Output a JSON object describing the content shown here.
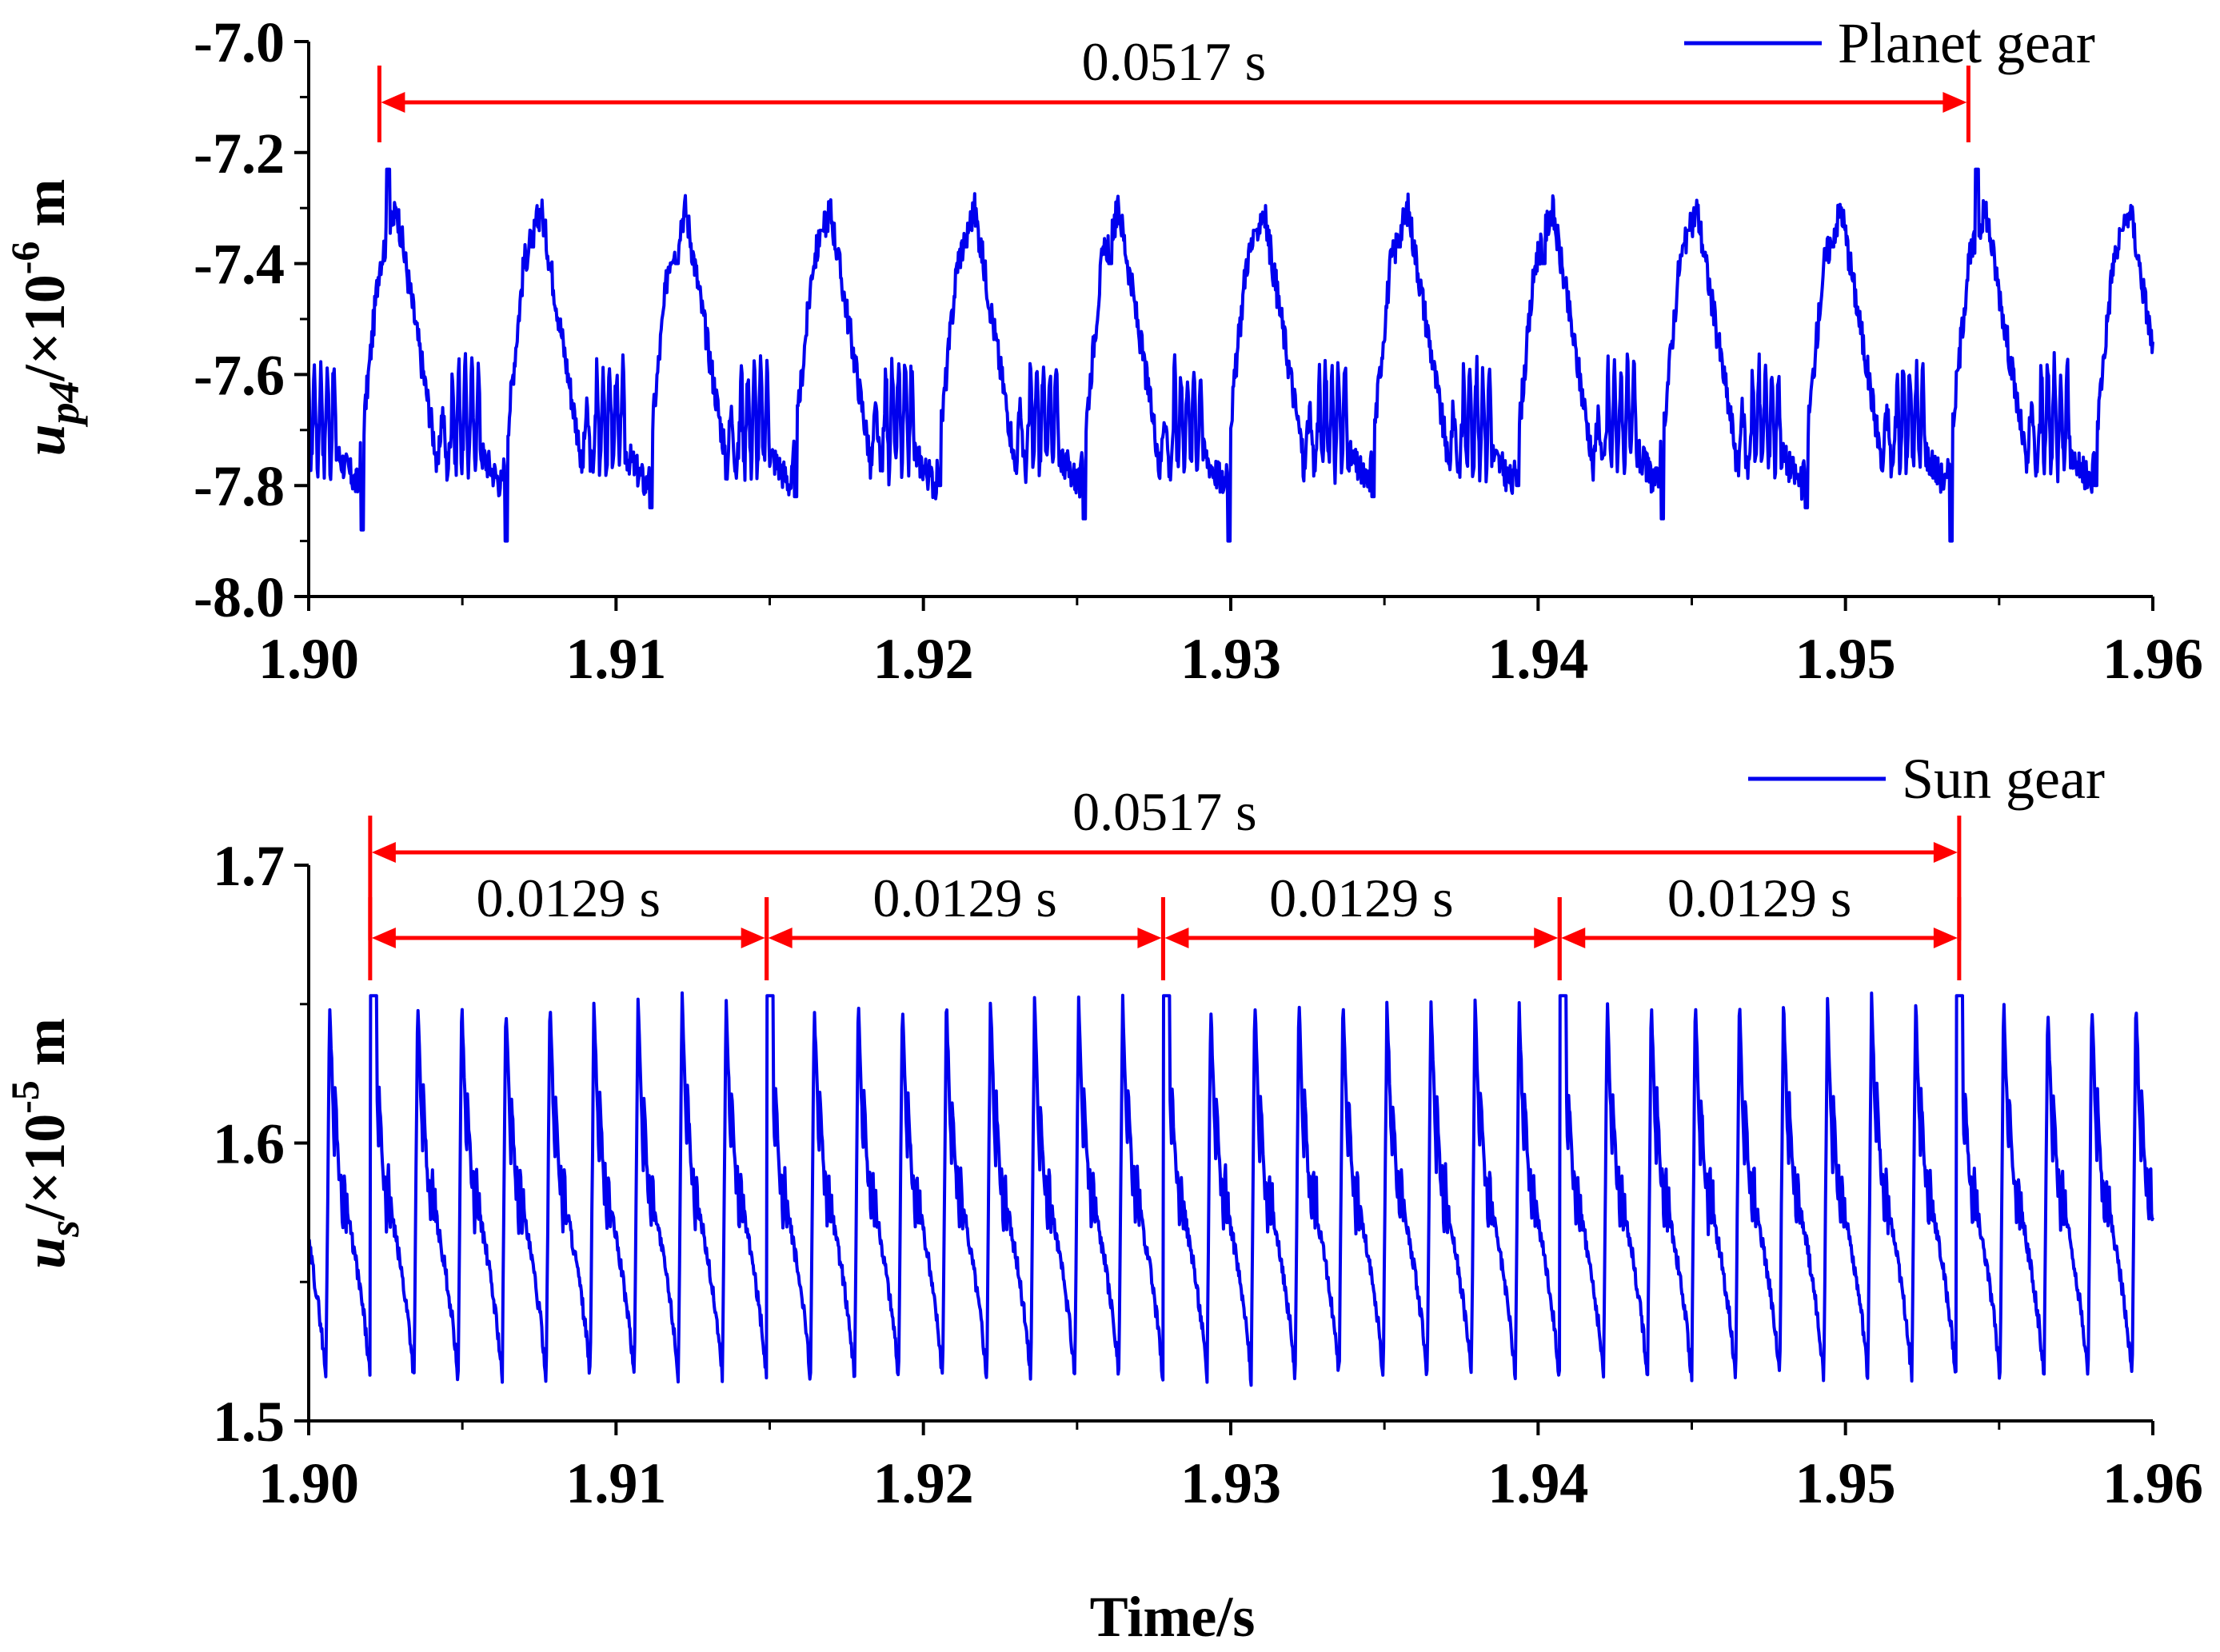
{
  "chart_data": [
    {
      "type": "line",
      "ylabel": {
        "main": "u",
        "sub": "p4",
        "rest": "/×10",
        "sup": "-6",
        "unit": " m"
      },
      "xlim": [
        1.9,
        1.96
      ],
      "ylim": [
        -8.0,
        -7.0
      ],
      "xticks": [
        "1.90",
        "1.91",
        "1.92",
        "1.93",
        "1.94",
        "1.95",
        "1.96"
      ],
      "yticks": [
        "-7.0",
        "-7.2",
        "-7.4",
        "-7.6",
        "-7.8",
        "-8.0"
      ],
      "series": [
        {
          "name": "Planet gear",
          "color": "#0000ee",
          "period": 0.0517,
          "t_start": 1.9023,
          "envelope": {
            "peak_max": -7.23,
            "peak_typ": -7.4,
            "trough_typ": -7.78,
            "trough_min": -7.94
          }
        }
      ],
      "annotations": [
        {
          "label": "0.0517 s",
          "from": 1.9023,
          "to": 1.954
        }
      ]
    },
    {
      "type": "line",
      "ylabel": {
        "main": "u",
        "sub": "s",
        "rest": "/×10",
        "sup": "-5",
        "unit": " m"
      },
      "xlabel": "Time/s",
      "xlim": [
        1.9,
        1.96
      ],
      "ylim": [
        1.5,
        1.7
      ],
      "xticks": [
        "1.90",
        "1.91",
        "1.92",
        "1.93",
        "1.94",
        "1.95",
        "1.96"
      ],
      "yticks": [
        "1.7",
        "1.6",
        "1.5"
      ],
      "series": [
        {
          "name": "Sun gear",
          "color": "#0000ee",
          "period": 0.0517,
          "sub_period": 0.0129,
          "t_start": 1.902,
          "envelope": {
            "peak_max": 1.657,
            "peak_typ": 1.652,
            "trough_typ": 1.515
          }
        }
      ],
      "annotations": [
        {
          "label": "0.0517 s",
          "from": 1.902,
          "to": 1.9537
        },
        {
          "label": "0.0129 s",
          "from": 1.902,
          "to": 1.9149
        },
        {
          "label": "0.0129 s",
          "from": 1.9149,
          "to": 1.9278
        },
        {
          "label": "0.0129 s",
          "from": 1.9278,
          "to": 1.9407
        },
        {
          "label": "0.0129 s",
          "from": 1.9407,
          "to": 1.9537
        }
      ]
    }
  ],
  "colors": {
    "series": "#0000ee",
    "annotation": "#ff0000",
    "axis": "#000000"
  }
}
